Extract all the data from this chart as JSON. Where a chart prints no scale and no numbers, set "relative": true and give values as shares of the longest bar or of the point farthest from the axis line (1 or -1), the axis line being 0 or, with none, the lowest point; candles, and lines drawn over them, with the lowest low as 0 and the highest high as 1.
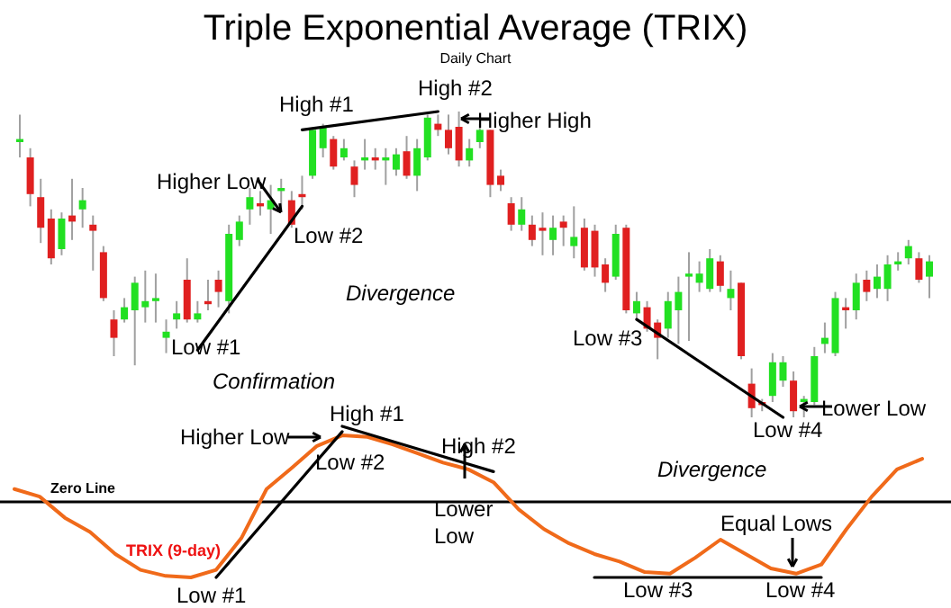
{
  "chart_data": [
    {
      "type": "candlestick",
      "title": "Triple Exponential Average (TRIX)",
      "subtitle": "Daily Chart",
      "relative": true,
      "categories": [
        null,
        null,
        null,
        null,
        null,
        null,
        null,
        null,
        null,
        null,
        null,
        null,
        null,
        null,
        null,
        null,
        null,
        null,
        null,
        null,
        null,
        null,
        null,
        null,
        null,
        null,
        null,
        null,
        null,
        null,
        null,
        null,
        null,
        null,
        null,
        null,
        null,
        null,
        null,
        null,
        null,
        null,
        null,
        null,
        null,
        null,
        null,
        null,
        null,
        null,
        null,
        null,
        null,
        null,
        null,
        null,
        null,
        null,
        null,
        null,
        null,
        null,
        null,
        null,
        null,
        null,
        null,
        null,
        null,
        null,
        null,
        null,
        null,
        null,
        null,
        null,
        null,
        null,
        null,
        null,
        null,
        null,
        null,
        null,
        null,
        null,
        null,
        null
      ],
      "ohlc": [
        [
          0.9,
          0.99,
          0.85,
          0.91
        ],
        [
          0.85,
          0.88,
          0.69,
          0.73
        ],
        [
          0.72,
          0.78,
          0.57,
          0.62
        ],
        [
          0.65,
          0.68,
          0.5,
          0.52
        ],
        [
          0.55,
          0.67,
          0.53,
          0.65
        ],
        [
          0.66,
          0.78,
          0.58,
          0.64
        ],
        [
          0.68,
          0.75,
          0.62,
          0.71
        ],
        [
          0.63,
          0.66,
          0.48,
          0.61
        ],
        [
          0.54,
          0.56,
          0.38,
          0.39
        ],
        [
          0.32,
          0.35,
          0.2,
          0.26
        ],
        [
          0.32,
          0.39,
          0.31,
          0.36
        ],
        [
          0.35,
          0.46,
          0.17,
          0.44
        ],
        [
          0.36,
          0.48,
          0.31,
          0.38
        ],
        [
          0.38,
          0.47,
          0.31,
          0.39
        ],
        [
          0.26,
          0.32,
          0.21,
          0.28
        ],
        [
          0.32,
          0.38,
          0.29,
          0.34
        ],
        [
          0.45,
          0.52,
          0.31,
          0.32
        ],
        [
          0.32,
          0.38,
          0.31,
          0.34
        ],
        [
          0.38,
          0.45,
          0.35,
          0.37
        ],
        [
          0.45,
          0.48,
          0.36,
          0.41
        ],
        [
          0.38,
          0.63,
          0.34,
          0.6
        ],
        [
          0.58,
          0.66,
          0.56,
          0.64
        ],
        [
          0.68,
          0.75,
          0.63,
          0.72
        ],
        [
          0.7,
          0.74,
          0.66,
          0.69
        ],
        [
          0.68,
          0.76,
          0.6,
          0.71
        ],
        [
          0.74,
          0.78,
          0.67,
          0.75
        ],
        [
          0.71,
          0.74,
          0.62,
          0.63
        ],
        [
          0.73,
          0.79,
          0.68,
          0.72
        ],
        [
          0.79,
          0.94,
          0.78,
          0.94
        ],
        [
          0.88,
          0.96,
          0.85,
          0.95
        ],
        [
          0.91,
          0.92,
          0.81,
          0.82
        ],
        [
          0.85,
          0.91,
          0.84,
          0.88
        ],
        [
          0.82,
          0.84,
          0.72,
          0.76
        ],
        [
          0.84,
          0.91,
          0.81,
          0.85
        ],
        [
          0.85,
          0.88,
          0.81,
          0.84
        ],
        [
          0.84,
          0.88,
          0.76,
          0.85
        ],
        [
          0.81,
          0.88,
          0.79,
          0.86
        ],
        [
          0.87,
          0.92,
          0.78,
          0.79
        ],
        [
          0.79,
          0.91,
          0.74,
          0.88
        ],
        [
          0.85,
          0.99,
          0.84,
          0.98
        ],
        [
          0.96,
          0.99,
          0.92,
          0.94
        ],
        [
          0.94,
          0.99,
          0.86,
          0.88
        ],
        [
          0.95,
          1.0,
          0.82,
          0.84
        ],
        [
          0.84,
          0.91,
          0.82,
          0.88
        ],
        [
          0.9,
          0.96,
          0.88,
          0.94
        ],
        [
          0.94,
          0.94,
          0.72,
          0.76
        ],
        [
          0.79,
          0.81,
          0.74,
          0.76
        ],
        [
          0.7,
          0.72,
          0.61,
          0.63
        ],
        [
          0.63,
          0.72,
          0.61,
          0.68
        ],
        [
          0.63,
          0.66,
          0.56,
          0.58
        ],
        [
          0.62,
          0.67,
          0.53,
          0.61
        ],
        [
          0.58,
          0.66,
          0.53,
          0.62
        ],
        [
          0.64,
          0.66,
          0.56,
          0.62
        ],
        [
          0.56,
          0.69,
          0.52,
          0.59
        ],
        [
          0.62,
          0.65,
          0.48,
          0.49
        ],
        [
          0.61,
          0.63,
          0.46,
          0.49
        ],
        [
          0.5,
          0.52,
          0.41,
          0.44
        ],
        [
          0.46,
          0.63,
          0.45,
          0.6
        ],
        [
          0.62,
          0.63,
          0.34,
          0.35
        ],
        [
          0.34,
          0.41,
          0.32,
          0.38
        ],
        [
          0.36,
          0.38,
          0.28,
          0.29
        ],
        [
          0.31,
          0.32,
          0.19,
          0.26
        ],
        [
          0.29,
          0.41,
          0.26,
          0.38
        ],
        [
          0.35,
          0.46,
          0.24,
          0.41
        ],
        [
          0.46,
          0.54,
          0.25,
          0.47
        ],
        [
          0.44,
          0.51,
          0.41,
          0.47
        ],
        [
          0.42,
          0.55,
          0.41,
          0.52
        ],
        [
          0.51,
          0.53,
          0.41,
          0.43
        ],
        [
          0.39,
          0.48,
          0.35,
          0.42
        ],
        [
          0.44,
          0.44,
          0.19,
          0.2
        ],
        [
          0.11,
          0.16,
          0.0,
          0.03
        ],
        [
          0.05,
          0.06,
          0.02,
          0.04
        ],
        [
          0.07,
          0.21,
          0.05,
          0.18
        ],
        [
          0.12,
          0.2,
          0.1,
          0.18
        ],
        [
          0.12,
          0.15,
          0.0,
          0.02
        ],
        [
          0.05,
          0.07,
          0.0,
          0.06
        ],
        [
          0.05,
          0.23,
          0.04,
          0.2
        ],
        [
          0.24,
          0.31,
          0.21,
          0.26
        ],
        [
          0.21,
          0.41,
          0.2,
          0.39
        ],
        [
          0.36,
          0.39,
          0.29,
          0.35
        ],
        [
          0.35,
          0.47,
          0.32,
          0.44
        ],
        [
          0.45,
          0.48,
          0.38,
          0.41
        ],
        [
          0.42,
          0.5,
          0.39,
          0.46
        ],
        [
          0.42,
          0.53,
          0.38,
          0.5
        ],
        [
          0.5,
          0.54,
          0.48,
          0.51
        ],
        [
          0.52,
          0.58,
          0.5,
          0.56
        ],
        [
          0.52,
          0.54,
          0.44,
          0.45
        ],
        [
          0.46,
          0.53,
          0.39,
          0.51
        ]
      ],
      "series": [
        {
          "type": "line",
          "color": "#000000",
          "values": [
            null,
            null,
            null,
            null,
            null,
            null,
            null,
            null,
            null,
            null,
            null,
            null,
            null,
            null,
            null,
            null,
            null,
            0.22,
            null,
            null,
            null,
            null,
            null,
            null,
            null,
            null,
            null,
            0.69,
            null,
            null,
            null,
            null,
            null,
            null,
            null,
            null,
            null,
            null,
            null,
            null,
            null,
            null,
            null,
            null,
            null,
            null,
            null,
            null,
            null,
            null,
            null,
            null,
            null,
            null,
            null,
            null,
            null,
            null,
            null,
            null,
            null,
            null,
            null,
            null,
            null,
            null,
            null,
            null,
            null,
            null,
            null,
            null,
            null,
            null,
            null,
            null,
            null,
            null,
            null,
            null,
            null,
            null,
            null,
            null,
            null,
            null,
            null,
            null
          ]
        },
        {
          "type": "line",
          "color": "#000000",
          "values": [
            null,
            null,
            null,
            null,
            null,
            null,
            null,
            null,
            null,
            null,
            null,
            null,
            null,
            null,
            null,
            null,
            null,
            null,
            null,
            null,
            null,
            null,
            null,
            null,
            null,
            null,
            null,
            0.94,
            null,
            null,
            null,
            null,
            null,
            null,
            null,
            null,
            null,
            null,
            null,
            null,
            1.0,
            null,
            null,
            null,
            null,
            null,
            null,
            null,
            null,
            null,
            null,
            null,
            null,
            null,
            null,
            null,
            null,
            null,
            null,
            null,
            null,
            null,
            null,
            null,
            null,
            null,
            null,
            null,
            null,
            null,
            null,
            null,
            null,
            null,
            null,
            null,
            null,
            null,
            null,
            null,
            null,
            null,
            null,
            null,
            null,
            null,
            null,
            null
          ]
        },
        {
          "type": "line",
          "color": "#000000",
          "values": [
            null,
            null,
            null,
            null,
            null,
            null,
            null,
            null,
            null,
            null,
            null,
            null,
            null,
            null,
            null,
            null,
            null,
            null,
            null,
            null,
            null,
            null,
            null,
            null,
            null,
            null,
            null,
            null,
            null,
            null,
            null,
            null,
            null,
            null,
            null,
            null,
            null,
            null,
            null,
            null,
            null,
            null,
            null,
            null,
            null,
            null,
            null,
            null,
            null,
            null,
            null,
            null,
            null,
            null,
            null,
            null,
            null,
            null,
            null,
            0.32,
            null,
            null,
            null,
            null,
            null,
            null,
            null,
            null,
            null,
            null,
            null,
            null,
            null,
            0.0,
            null,
            null,
            null,
            null,
            null,
            null,
            null,
            null,
            null,
            null,
            null,
            null,
            null,
            null
          ]
        }
      ],
      "annotations": [
        "High #1",
        "High #2",
        "Higher High",
        "Higher Low",
        "Low #2",
        "Low #1",
        "Divergence",
        "Low #3",
        "Low #4",
        "Lower Low"
      ]
    },
    {
      "type": "line",
      "relative": true,
      "categories": [
        null,
        null,
        null,
        null,
        null,
        null,
        null,
        null,
        null,
        null,
        null,
        null,
        null,
        null,
        null,
        null,
        null,
        null,
        null,
        null,
        null,
        null,
        null,
        null,
        null,
        null,
        null,
        null,
        null,
        null,
        null,
        null,
        null,
        null,
        null,
        null,
        null
      ],
      "series": [
        {
          "name": "TRIX (9-day)",
          "color": "#f06a1a",
          "values": [
            0.17,
            0.07,
            -0.21,
            -0.4,
            -0.69,
            -0.9,
            -0.98,
            -1.0,
            -0.9,
            -0.48,
            0.17,
            0.45,
            0.74,
            0.88,
            0.86,
            0.76,
            0.64,
            0.52,
            0.43,
            0.26,
            -0.1,
            -0.36,
            -0.55,
            -0.69,
            -0.79,
            -0.93,
            -0.95,
            -0.74,
            -0.5,
            -0.69,
            -0.88,
            -0.95,
            -0.83,
            -0.36,
            0.07,
            0.43,
            0.57
          ]
        },
        {
          "color": "#000000",
          "values": [
            null,
            null,
            null,
            null,
            null,
            null,
            null,
            null,
            -1.0,
            null,
            null,
            null,
            null,
            0.93,
            null,
            null,
            null,
            null,
            null,
            null,
            null,
            null,
            null,
            null,
            null,
            null,
            null,
            null,
            null,
            null,
            null,
            null,
            null,
            null,
            null,
            null,
            null
          ]
        },
        {
          "color": "#000000",
          "values": [
            null,
            null,
            null,
            null,
            null,
            null,
            null,
            null,
            null,
            null,
            null,
            null,
            null,
            1.0,
            null,
            null,
            null,
            null,
            null,
            0.4,
            null,
            null,
            null,
            null,
            null,
            null,
            null,
            null,
            null,
            null,
            null,
            null,
            null,
            null,
            null,
            null,
            null
          ]
        },
        {
          "color": "#000000",
          "values": [
            null,
            null,
            null,
            null,
            null,
            null,
            null,
            null,
            null,
            null,
            null,
            null,
            null,
            null,
            null,
            null,
            null,
            null,
            null,
            null,
            null,
            null,
            null,
            -1.0,
            null,
            null,
            null,
            null,
            null,
            null,
            null,
            null,
            -1.0,
            null,
            null,
            null,
            null
          ]
        }
      ],
      "ref_lines": [
        {
          "axis": "y",
          "value": 0,
          "label": "Zero Line",
          "color": "#000000"
        }
      ],
      "annotations": [
        "Confirmation",
        "Higher Low",
        "High #1",
        "Low #2",
        "High #2",
        "Lower Low",
        "Low #1",
        "Divergence",
        "Equal Lows",
        "Low #3",
        "Low #4"
      ]
    }
  ]
}
